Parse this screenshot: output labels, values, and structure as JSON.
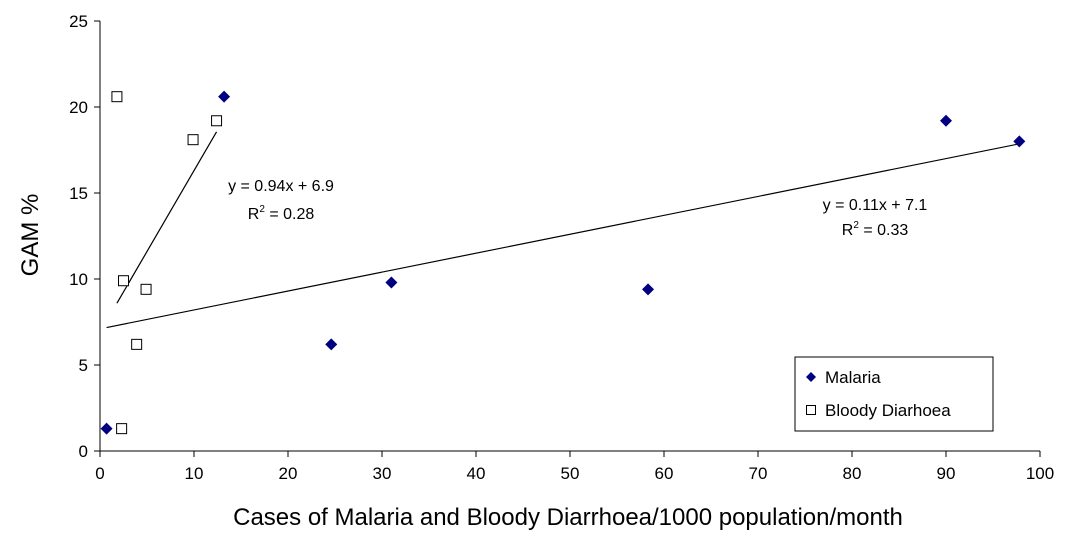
{
  "chart_data": {
    "type": "scatter",
    "xlabel": "Cases of Malaria and Bloody Diarrhoea/1000 population/month",
    "ylabel": "GAM %",
    "xlim": [
      0,
      100
    ],
    "ylim": [
      0,
      25
    ],
    "xticks": [
      0,
      10,
      20,
      30,
      40,
      50,
      60,
      70,
      80,
      90,
      100
    ],
    "yticks": [
      0,
      5,
      10,
      15,
      20,
      25
    ],
    "grid": false,
    "legend_position": "bottom-right",
    "series": [
      {
        "name": "Malaria",
        "marker": "diamond",
        "color": "#000080",
        "points": [
          [
            0.7,
            1.3
          ],
          [
            13.2,
            20.6
          ],
          [
            24.6,
            6.2
          ],
          [
            31.0,
            9.8
          ],
          [
            58.3,
            9.4
          ],
          [
            90.0,
            19.2
          ],
          [
            97.8,
            18.0
          ]
        ],
        "trendline": {
          "slope": 0.11,
          "intercept": 7.1,
          "x_range": [
            0.7,
            97.8
          ],
          "equation": "y = 0.11x + 7.1",
          "r2_label": "R",
          "r2_sup": "2",
          "r2_value": " = 0.33"
        }
      },
      {
        "name": "Bloody Diarhoea",
        "marker": "square-open",
        "color": "#000000",
        "points": [
          [
            1.8,
            20.6
          ],
          [
            2.3,
            1.3
          ],
          [
            2.5,
            9.9
          ],
          [
            3.9,
            6.2
          ],
          [
            4.9,
            9.4
          ],
          [
            9.9,
            18.1
          ],
          [
            12.4,
            19.2
          ]
        ],
        "trendline": {
          "slope": 0.94,
          "intercept": 6.9,
          "x_range": [
            1.8,
            12.4
          ],
          "equation": "y = 0.94x + 6.9",
          "r2_label": "R",
          "r2_sup": "2",
          "r2_value": " = 0.28"
        }
      }
    ]
  }
}
